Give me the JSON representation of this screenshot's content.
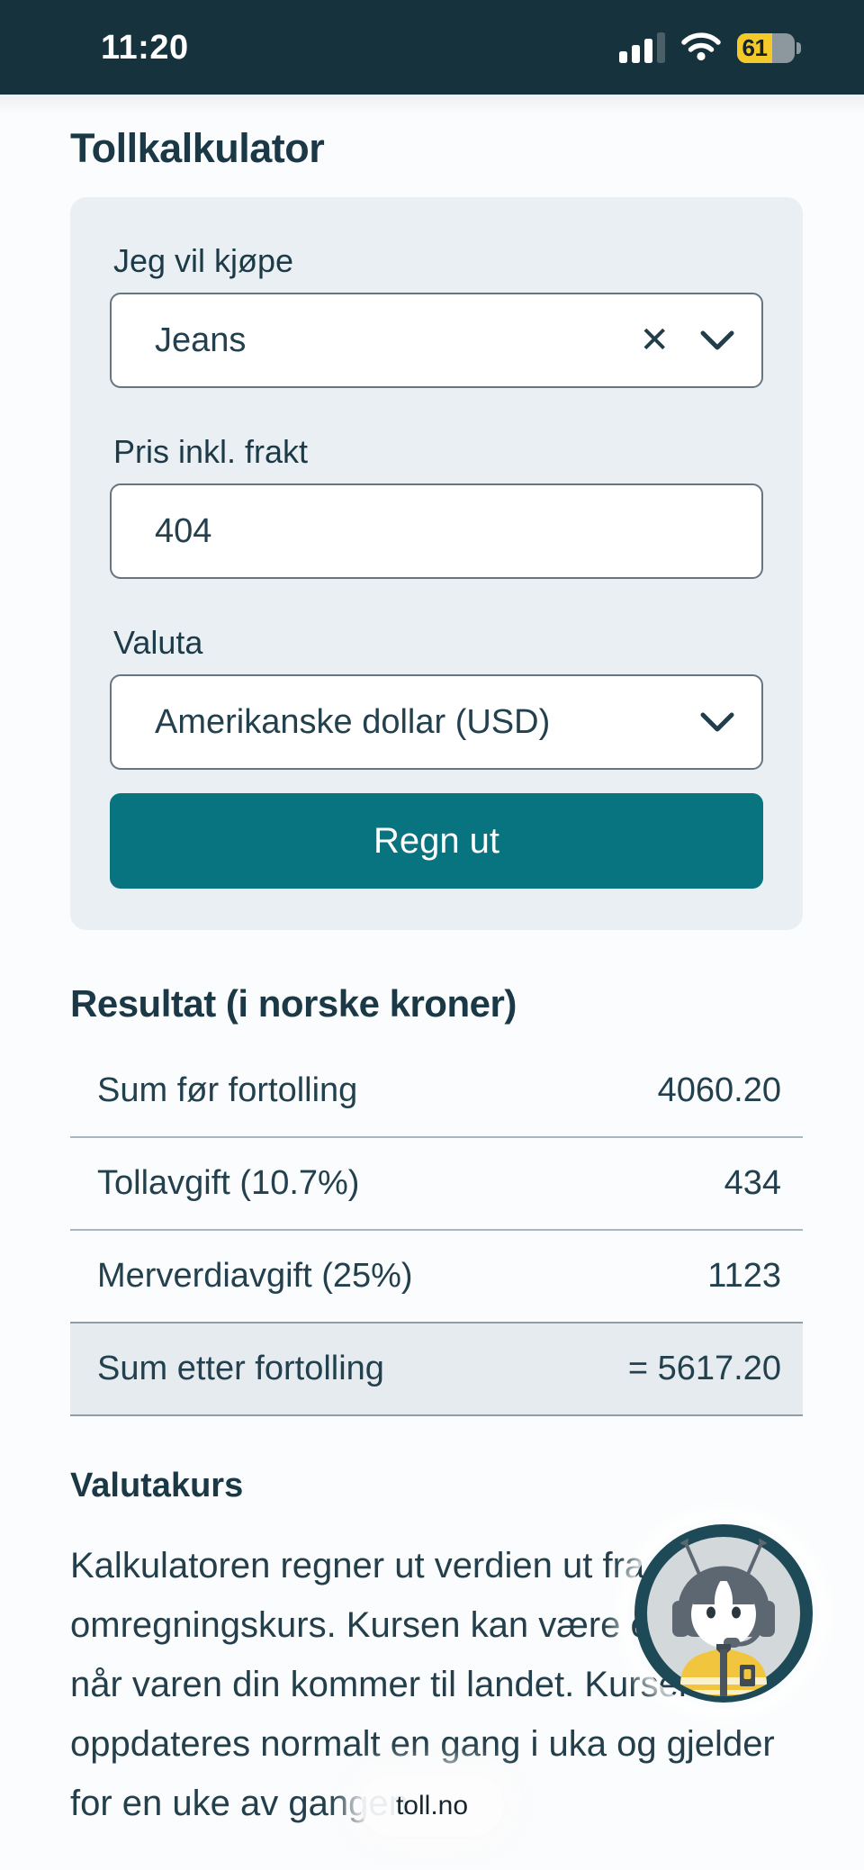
{
  "status_bar": {
    "time": "11:20",
    "battery_percent": "61"
  },
  "page": {
    "title": "Tollkalkulator"
  },
  "form": {
    "item_label": "Jeg vil kjøpe",
    "item_value": "Jeans",
    "price_label": "Pris inkl. frakt",
    "price_value": "404",
    "currency_label": "Valuta",
    "currency_value": "Amerikanske dollar (USD)",
    "submit_label": "Regn ut"
  },
  "result": {
    "heading": "Resultat (i norske kroner)",
    "rows": [
      {
        "label": "Sum før fortolling",
        "value": "4060.20",
        "highlight": false
      },
      {
        "label": "Tollavgift (10.7%)",
        "value": "434",
        "highlight": false
      },
      {
        "label": "Merverdiavgift (25%)",
        "value": "1123",
        "highlight": false
      },
      {
        "label": "Sum etter fortolling",
        "value": "= 5617.20",
        "highlight": true
      }
    ]
  },
  "info": {
    "heading": "Valutakurs",
    "body": "Kalkulatoren regner ut verdien ut fra dagens omregningskurs. Kursen kan være en annen når varen din kommer til landet. Kursene oppdateres normalt en gang i uka og gjelder for en uke av gangen."
  },
  "browser": {
    "url_pill": "toll.no"
  },
  "colors": {
    "accent_teal": "#07747f",
    "status_bar_bg": "#15323d",
    "battery_yellow": "#f4c929",
    "card_bg": "#e9eff3",
    "highlight_row_bg": "#e6ebf0"
  }
}
